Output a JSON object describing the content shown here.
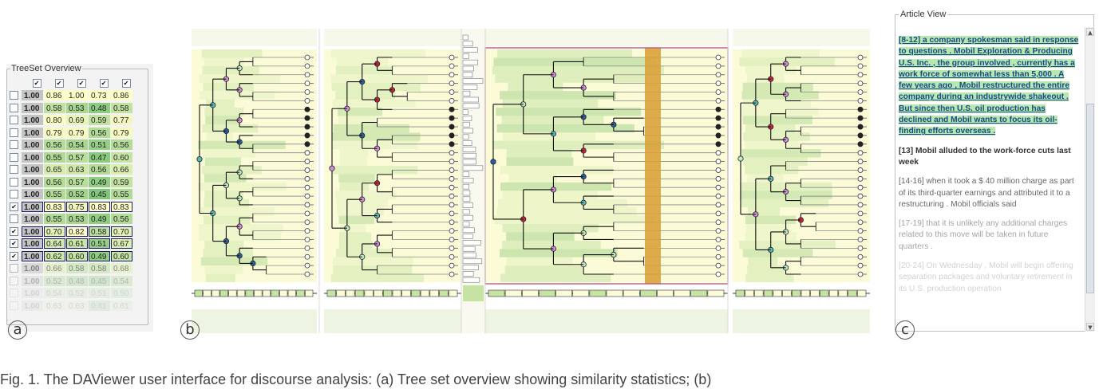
{
  "overview": {
    "title": "TreeSet Overview",
    "label": "a",
    "header_checks": [
      true,
      true,
      true,
      true,
      true
    ],
    "rows": [
      {
        "checked": false,
        "values": [
          "1.00",
          "0.86",
          "1.00",
          "0.73",
          "0.86"
        ],
        "colors": [
          "#c4c4c4",
          "#ffffc8",
          "#ffffc8",
          "#ffffc8",
          "#ffffc8"
        ],
        "selected": false,
        "fade": 0
      },
      {
        "checked": false,
        "values": [
          "1.00",
          "0.58",
          "0.53",
          "0.48",
          "0.58"
        ],
        "colors": [
          "#c4c4c4",
          "#c2e2a2",
          "#a8d690",
          "#8ccc80",
          "#c2e2a2"
        ],
        "selected": false,
        "fade": 0
      },
      {
        "checked": false,
        "values": [
          "1.00",
          "0.80",
          "0.69",
          "0.59",
          "0.77"
        ],
        "colors": [
          "#c4c4c4",
          "#ffffc8",
          "#e9f4b8",
          "#c2e2a2",
          "#f4f8c0"
        ],
        "selected": false,
        "fade": 0
      },
      {
        "checked": false,
        "values": [
          "1.00",
          "0.79",
          "0.79",
          "0.56",
          "0.79"
        ],
        "colors": [
          "#c4c4c4",
          "#f7fbc2",
          "#f7fbc2",
          "#b3dc98",
          "#f7fbc2"
        ],
        "selected": false,
        "fade": 0
      },
      {
        "checked": false,
        "values": [
          "1.00",
          "0.56",
          "0.54",
          "0.51",
          "0.56"
        ],
        "colors": [
          "#c4c4c4",
          "#b3dc98",
          "#a8d690",
          "#98cf86",
          "#b3dc98"
        ],
        "selected": false,
        "fade": 0
      },
      {
        "checked": false,
        "values": [
          "1.00",
          "0.55",
          "0.57",
          "0.47",
          "0.60"
        ],
        "colors": [
          "#c4c4c4",
          "#b0da96",
          "#b7de9b",
          "#88ca7e",
          "#c6e4a4"
        ],
        "selected": false,
        "fade": 0
      },
      {
        "checked": false,
        "values": [
          "1.00",
          "0.65",
          "0.63",
          "0.56",
          "0.66"
        ],
        "colors": [
          "#c4c4c4",
          "#d6ecae",
          "#d0e9aa",
          "#b3dc98",
          "#daeeb0"
        ],
        "selected": false,
        "fade": 0
      },
      {
        "checked": false,
        "values": [
          "1.00",
          "0.56",
          "0.57",
          "0.49",
          "0.59"
        ],
        "colors": [
          "#c4c4c4",
          "#b3dc98",
          "#b7de9b",
          "#90cc82",
          "#c2e2a2"
        ],
        "selected": false,
        "fade": 0
      },
      {
        "checked": false,
        "values": [
          "1.00",
          "0.55",
          "0.52",
          "0.45",
          "0.55"
        ],
        "colors": [
          "#c4c4c4",
          "#b0da96",
          "#a2d38c",
          "#80c67a",
          "#b0da96"
        ],
        "selected": false,
        "fade": 0
      },
      {
        "checked": true,
        "values": [
          "1.00",
          "0.83",
          "0.75",
          "0.83",
          "0.83"
        ],
        "colors": [
          "#c4c4c4",
          "#ffffc8",
          "#f1f7bc",
          "#ffffc8",
          "#ffffc8"
        ],
        "selected": true,
        "fade": 0
      },
      {
        "checked": false,
        "values": [
          "1.00",
          "0.55",
          "0.53",
          "0.49",
          "0.56"
        ],
        "colors": [
          "#c4c4c4",
          "#b0da96",
          "#a8d690",
          "#90cc82",
          "#b3dc98"
        ],
        "selected": false,
        "fade": 0
      },
      {
        "checked": true,
        "values": [
          "1.00",
          "0.70",
          "0.82",
          "0.58",
          "0.70"
        ],
        "colors": [
          "#c4c4c4",
          "#e2f1b4",
          "#ffffc8",
          "#bde09e",
          "#e2f1b4"
        ],
        "selected": true,
        "fade": 0
      },
      {
        "checked": true,
        "values": [
          "1.00",
          "0.64",
          "0.61",
          "0.51",
          "0.67"
        ],
        "colors": [
          "#c4c4c4",
          "#d3eaac",
          "#c9e6a6",
          "#98cf86",
          "#dcefb1"
        ],
        "selected": true,
        "fade": 0
      },
      {
        "checked": true,
        "values": [
          "1.00",
          "0.62",
          "0.60",
          "0.49",
          "0.60"
        ],
        "colors": [
          "#c4c4c4",
          "#cde8a8",
          "#c6e4a4",
          "#90cc82",
          "#c6e4a4"
        ],
        "selected": true,
        "fade": 0
      },
      {
        "checked": false,
        "values": [
          "1.00",
          "0.66",
          "0.58",
          "0.58",
          "0.68"
        ],
        "colors": [
          "#c4c4c4",
          "#daeeb0",
          "#bde09e",
          "#bde09e",
          "#deefb2"
        ],
        "selected": false,
        "fade": 1
      },
      {
        "checked": false,
        "values": [
          "1.00",
          "0.52",
          "0.48",
          "0.45",
          "0.54"
        ],
        "colors": [
          "#c4c4c4",
          "#a2d38c",
          "#8ccc80",
          "#80c67a",
          "#a8d690"
        ],
        "selected": false,
        "fade": 2
      },
      {
        "checked": false,
        "values": [
          "1.00",
          "0.54",
          "0.52",
          "0.51",
          "0.50"
        ],
        "colors": [
          "#c4c4c4",
          "#a8d690",
          "#a2d38c",
          "#98cf86",
          "#94ce84"
        ],
        "selected": false,
        "fade": 3
      },
      {
        "checked": false,
        "values": [
          "1.00",
          "0.63",
          "0.63",
          "0.41",
          "0.61"
        ],
        "colors": [
          "#c4c4c4",
          "#d0e9aa",
          "#d0e9aa",
          "#78c276",
          "#c9e6a6"
        ],
        "selected": false,
        "fade": 3
      }
    ]
  },
  "treeview": {
    "label": "b",
    "colors": {
      "light_yellow": "#fbfbd8",
      "pale_green": "#e2f0bc",
      "mid_green": "#c6e3a4",
      "dark_green": "#a6d38c",
      "focus_border": "#c0587a",
      "orange_band": "#d9a23a",
      "edge": "#111111",
      "node_red": "#c8243c",
      "node_blue": "#2a5d9c",
      "node_purple": "#d48cd8",
      "node_teal": "#58b8b8",
      "leaf_dark": "#222222"
    }
  },
  "article": {
    "title": "Article View",
    "label": "c",
    "paragraphs": [
      {
        "style": "hl",
        "text": "[8-12] a company spokesman said in response to questions . Mobil Exploration & Producing U.S. Inc. , the group involved , currently has a work force of somewhat less than 5,000 . A few years ago , Mobil restructured the entire company during an industrywide shakeout . But since then U.S. oil production has declined and Mobil wants to focus its oil-finding efforts overseas ."
      },
      {
        "style": "bold",
        "text": "[13] Mobil alluded to the work-force cuts last week"
      },
      {
        "style": "fadeA",
        "text": "[14-16] when it took a $ 40 million charge as part of its third-quarter earnings and attributed it to a restructuring . Mobil officials said"
      },
      {
        "style": "fadeB",
        "text": "[17-19] that it is unlikely any additional charges related to this move will be taken in future quarters ."
      },
      {
        "style": "fadeC",
        "text": "[20-24] On Wednesday , Mobil will begin offering separation packages and voluntary retirement in its U.S. production operation"
      }
    ]
  },
  "caption": "Fig. 1.  The DAViewer user interface for discourse analysis: (a) Tree set overview showing similarity statistics; (b)"
}
